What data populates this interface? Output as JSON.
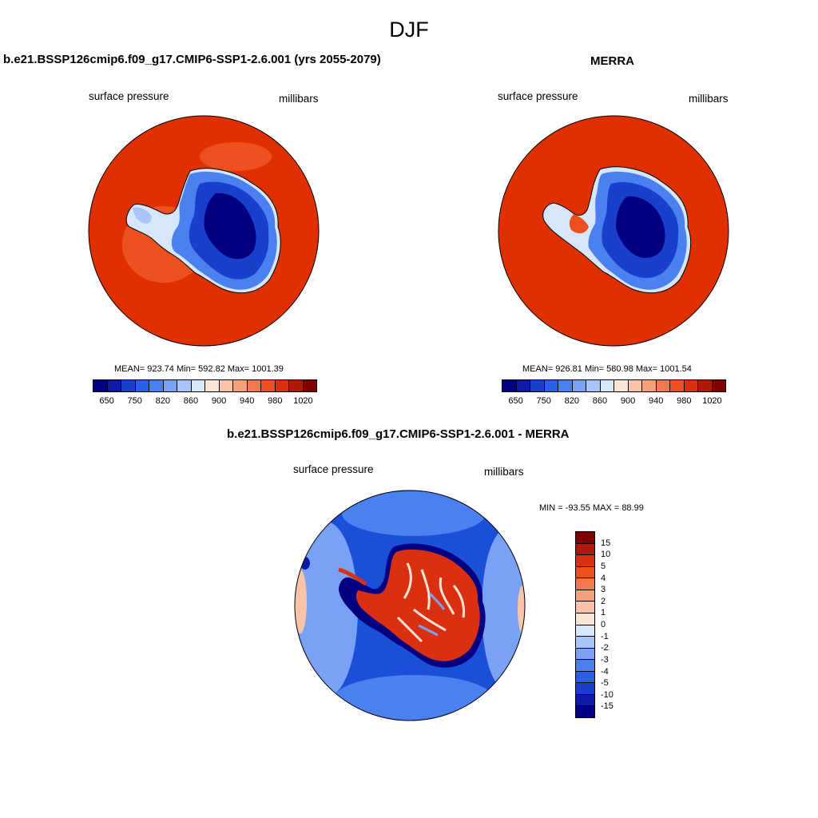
{
  "suptitle": "DJF",
  "panels": [
    {
      "title": "b.e21.BSSP126cmip6.f09_g17.CMIP6-SSP1-2.6.001 (yrs 2055-2079)",
      "left_label": "surface pressure",
      "right_label": "millibars",
      "stats": "MEAN= 923.74  Min= 592.82  Max= 1001.39"
    },
    {
      "title": "MERRA",
      "left_label": "surface pressure",
      "right_label": "millibars",
      "stats": "MEAN= 926.81  Min= 580.98  Max= 1001.54"
    },
    {
      "title": "b.e21.BSSP126cmip6.f09_g17.CMIP6-SSP1-2.6.001 - MERRA",
      "left_label": "surface pressure",
      "right_label": "millibars",
      "stats": "MIN = -93.55 MAX =  88.99"
    }
  ],
  "abs_colorbar": {
    "colors": [
      "#000080",
      "#0d1aa8",
      "#1a3fcc",
      "#2a5fe8",
      "#4a80f0",
      "#7aa2f4",
      "#a9c4f8",
      "#d6e6fb",
      "#fde5d4",
      "#fbc4a8",
      "#f7a07c",
      "#f37850",
      "#ec5020",
      "#d83010",
      "#b01808",
      "#800000"
    ],
    "ticks": [
      "650",
      "750",
      "820",
      "860",
      "900",
      "940",
      "980",
      "1020"
    ]
  },
  "diff_colorbar": {
    "colors": [
      "#800000",
      "#b01808",
      "#d83010",
      "#ec5020",
      "#f37850",
      "#f7a07c",
      "#fbc4a8",
      "#fde5d4",
      "#d6e6fb",
      "#a9c4f8",
      "#7aa2f4",
      "#4a80f0",
      "#2a5fe8",
      "#1a3fcc",
      "#0d1aa8",
      "#000080"
    ],
    "ticks": [
      "15",
      "10",
      "5",
      "4",
      "3",
      "2",
      "1",
      "0",
      "-1",
      "-2",
      "-3",
      "-4",
      "-5",
      "-10",
      "-15"
    ]
  },
  "colors": {
    "ocean_red": "#e03000",
    "diff_ocean_blue": "#1c4fd8"
  }
}
